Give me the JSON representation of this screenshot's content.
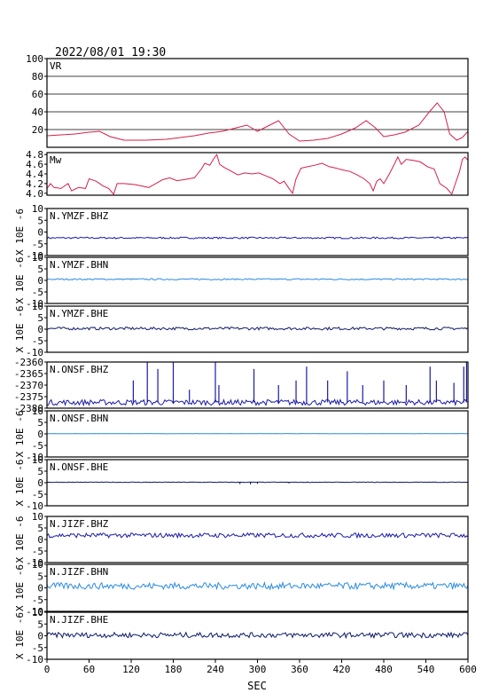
{
  "header": {
    "timestamp": "2022/08/01 19:30"
  },
  "x_axis": {
    "label": "SEC",
    "ticks": [
      0,
      60,
      120,
      180,
      240,
      300,
      360,
      420,
      480,
      540,
      600
    ],
    "range": [
      0,
      600
    ]
  },
  "colors": {
    "vr": "#d6204a",
    "mw": "#d6204a",
    "bhz": "#1a1aa8",
    "bhn": "#2a8be0",
    "bhe": "#0d1a66",
    "frame": "#000000",
    "grid": "#000000"
  },
  "chart_data": [
    {
      "type": "line",
      "name": "vr-panel",
      "label": "VR",
      "ylim": [
        0,
        100
      ],
      "yticks": [
        "100",
        "80",
        "60",
        "40",
        "20"
      ],
      "ytick_values": [
        100,
        80,
        60,
        40,
        20
      ],
      "grid": true,
      "color_key": "vr",
      "points": [
        [
          0,
          13
        ],
        [
          20,
          14
        ],
        [
          40,
          15
        ],
        [
          60,
          17
        ],
        [
          75,
          18
        ],
        [
          90,
          12
        ],
        [
          110,
          8
        ],
        [
          140,
          8
        ],
        [
          170,
          9
        ],
        [
          190,
          11
        ],
        [
          210,
          13
        ],
        [
          230,
          16
        ],
        [
          250,
          18
        ],
        [
          270,
          22
        ],
        [
          285,
          25
        ],
        [
          300,
          18
        ],
        [
          315,
          24
        ],
        [
          330,
          30
        ],
        [
          345,
          15
        ],
        [
          360,
          7
        ],
        [
          380,
          8
        ],
        [
          400,
          10
        ],
        [
          420,
          15
        ],
        [
          440,
          22
        ],
        [
          455,
          30
        ],
        [
          468,
          22
        ],
        [
          480,
          12
        ],
        [
          495,
          14
        ],
        [
          510,
          17
        ],
        [
          530,
          25
        ],
        [
          545,
          40
        ],
        [
          556,
          50
        ],
        [
          566,
          40
        ],
        [
          574,
          15
        ],
        [
          584,
          8
        ],
        [
          592,
          11
        ],
        [
          600,
          18
        ]
      ]
    },
    {
      "type": "line",
      "name": "mw-panel",
      "label": "Mw",
      "ylim": [
        3.96,
        4.84
      ],
      "yticks": [
        "4.8",
        "4.6",
        "4.4",
        "4.2",
        "4.0"
      ],
      "ytick_values": [
        4.8,
        4.6,
        4.4,
        4.2,
        4.0
      ],
      "grid": false,
      "color_key": "mw",
      "points": [
        [
          0,
          4.1
        ],
        [
          5,
          4.2
        ],
        [
          10,
          4.12
        ],
        [
          20,
          4.1
        ],
        [
          30,
          4.2
        ],
        [
          35,
          4.05
        ],
        [
          45,
          4.12
        ],
        [
          55,
          4.1
        ],
        [
          60,
          4.3
        ],
        [
          70,
          4.25
        ],
        [
          80,
          4.15
        ],
        [
          88,
          4.1
        ],
        [
          95,
          3.98
        ],
        [
          100,
          4.2
        ],
        [
          110,
          4.2
        ],
        [
          125,
          4.18
        ],
        [
          135,
          4.15
        ],
        [
          145,
          4.12
        ],
        [
          155,
          4.2
        ],
        [
          165,
          4.28
        ],
        [
          175,
          4.32
        ],
        [
          185,
          4.26
        ],
        [
          195,
          4.28
        ],
        [
          210,
          4.32
        ],
        [
          220,
          4.5
        ],
        [
          225,
          4.62
        ],
        [
          232,
          4.58
        ],
        [
          238,
          4.72
        ],
        [
          242,
          4.8
        ],
        [
          246,
          4.6
        ],
        [
          252,
          4.54
        ],
        [
          262,
          4.46
        ],
        [
          272,
          4.38
        ],
        [
          282,
          4.42
        ],
        [
          292,
          4.4
        ],
        [
          302,
          4.42
        ],
        [
          312,
          4.36
        ],
        [
          322,
          4.3
        ],
        [
          332,
          4.2
        ],
        [
          338,
          4.25
        ],
        [
          345,
          4.1
        ],
        [
          350,
          4.0
        ],
        [
          355,
          4.3
        ],
        [
          362,
          4.52
        ],
        [
          372,
          4.55
        ],
        [
          382,
          4.58
        ],
        [
          392,
          4.62
        ],
        [
          402,
          4.55
        ],
        [
          412,
          4.52
        ],
        [
          422,
          4.48
        ],
        [
          432,
          4.45
        ],
        [
          442,
          4.38
        ],
        [
          452,
          4.3
        ],
        [
          460,
          4.2
        ],
        [
          465,
          4.05
        ],
        [
          470,
          4.25
        ],
        [
          475,
          4.3
        ],
        [
          480,
          4.2
        ],
        [
          488,
          4.4
        ],
        [
          495,
          4.6
        ],
        [
          500,
          4.75
        ],
        [
          505,
          4.6
        ],
        [
          512,
          4.7
        ],
        [
          522,
          4.68
        ],
        [
          532,
          4.65
        ],
        [
          542,
          4.55
        ],
        [
          552,
          4.5
        ],
        [
          560,
          4.2
        ],
        [
          570,
          4.1
        ],
        [
          577,
          3.98
        ],
        [
          582,
          4.2
        ],
        [
          588,
          4.45
        ],
        [
          592,
          4.7
        ],
        [
          596,
          4.75
        ],
        [
          600,
          4.68
        ]
      ]
    },
    {
      "type": "line",
      "name": "trace-ymzf-bhz",
      "label": "N.YMZF.BHZ",
      "ylabel": "X 10E -6",
      "ylim": [
        -10,
        10
      ],
      "yticks": [
        "10",
        "5",
        "0",
        "-5",
        "-10"
      ],
      "ytick_values": [
        10,
        5,
        0,
        -5,
        -10
      ],
      "color_key": "bhz",
      "baseline": -2.5,
      "amplitude": 0.35,
      "spikes": []
    },
    {
      "type": "line",
      "name": "trace-ymzf-bhn",
      "label": "N.YMZF.BHN",
      "ylabel": "X 10E -6",
      "ylim": [
        -10,
        10
      ],
      "yticks": [
        "10",
        "5",
        "0",
        "-5",
        "-10"
      ],
      "ytick_values": [
        10,
        5,
        0,
        -5,
        -10
      ],
      "color_key": "bhn",
      "baseline": 0.5,
      "amplitude": 0.3,
      "spikes": []
    },
    {
      "type": "line",
      "name": "trace-ymzf-bhe",
      "label": "N.YMZF.BHE",
      "ylabel": "X 10E -6",
      "ylim": [
        -10,
        10
      ],
      "yticks": [
        "10",
        "5",
        "0",
        "-5",
        "-10"
      ],
      "ytick_values": [
        10,
        5,
        0,
        -5,
        -10
      ],
      "color_key": "bhe",
      "baseline": 0.3,
      "amplitude": 0.6,
      "spikes": []
    },
    {
      "type": "line",
      "name": "trace-onsf-bhz",
      "label": "N.ONSF.BHZ",
      "ylabel": "",
      "ylim": [
        -2380,
        -2360
      ],
      "yticks": [
        "-2360",
        "-2365",
        "-2370",
        "-2375",
        "-2380"
      ],
      "ytick_values": [
        -2360,
        -2365,
        -2370,
        -2375,
        -2380
      ],
      "color_key": "bhz",
      "baseline": -2377.5,
      "amplitude": 1.2,
      "spikes": [
        [
          123,
          -2368
        ],
        [
          143,
          -2360
        ],
        [
          158,
          -2363
        ],
        [
          180,
          -2360
        ],
        [
          203,
          -2372
        ],
        [
          240,
          -2360
        ],
        [
          245,
          -2370
        ],
        [
          295,
          -2363
        ],
        [
          330,
          -2370
        ],
        [
          355,
          -2368
        ],
        [
          370,
          -2362
        ],
        [
          400,
          -2368
        ],
        [
          428,
          -2364
        ],
        [
          450,
          -2370
        ],
        [
          480,
          -2368
        ],
        [
          512,
          -2370
        ],
        [
          546,
          -2362
        ],
        [
          555,
          -2368
        ],
        [
          580,
          -2369
        ],
        [
          594,
          -2362
        ],
        [
          598,
          -2360
        ]
      ]
    },
    {
      "type": "line",
      "name": "trace-onsf-bhn",
      "label": "N.ONSF.BHN",
      "ylabel": "X 10E -6",
      "ylim": [
        -10,
        10
      ],
      "yticks": [
        "10",
        "5",
        "0",
        "-5",
        "-10"
      ],
      "ytick_values": [
        10,
        5,
        0,
        -5,
        -10
      ],
      "color_key": "bhn",
      "baseline": 0.1,
      "amplitude": 0.05,
      "spikes": []
    },
    {
      "type": "line",
      "name": "trace-onsf-bhe",
      "label": "N.ONSF.BHE",
      "ylabel": "X 10E -6",
      "ylim": [
        -10,
        10
      ],
      "yticks": [
        "10",
        "5",
        "0",
        "-5",
        "-10"
      ],
      "ytick_values": [
        10,
        5,
        0,
        -5,
        -10
      ],
      "color_key": "bhe",
      "baseline": 0.2,
      "amplitude": 0.1,
      "spikes": [
        [
          275,
          -0.6
        ],
        [
          290,
          -0.7
        ],
        [
          300,
          -0.5
        ],
        [
          345,
          -0.3
        ]
      ]
    },
    {
      "type": "line",
      "name": "trace-jizf-bhz",
      "label": "N.JIZF.BHZ",
      "ylabel": "X 10E -6",
      "ylim": [
        -10,
        10
      ],
      "yticks": [
        "10",
        "5",
        "0",
        "-5",
        "-10"
      ],
      "ytick_values": [
        10,
        5,
        0,
        -5,
        -10
      ],
      "color_key": "bhz",
      "baseline": 1.8,
      "amplitude": 1.0,
      "spikes": []
    },
    {
      "type": "line",
      "name": "trace-jizf-bhn",
      "label": "N.JIZF.BHN",
      "ylabel": "X 10E -6",
      "ylim": [
        -10,
        10
      ],
      "yticks": [
        "10",
        "5",
        "0",
        "-5",
        "-10"
      ],
      "ytick_values": [
        10,
        5,
        0,
        -5,
        -10
      ],
      "color_key": "bhn",
      "baseline": 0.8,
      "amplitude": 1.4,
      "spikes": []
    },
    {
      "type": "line",
      "name": "trace-jizf-bhe",
      "label": "N.JIZF.BHE",
      "ylabel": "X 10E -6",
      "ylim": [
        -10,
        10
      ],
      "yticks": [
        "10",
        "5",
        "0",
        "-5",
        "-10"
      ],
      "ytick_values": [
        10,
        5,
        0,
        -5,
        -10
      ],
      "color_key": "bhe",
      "baseline": 0.3,
      "amplitude": 1.1,
      "spikes": []
    }
  ]
}
